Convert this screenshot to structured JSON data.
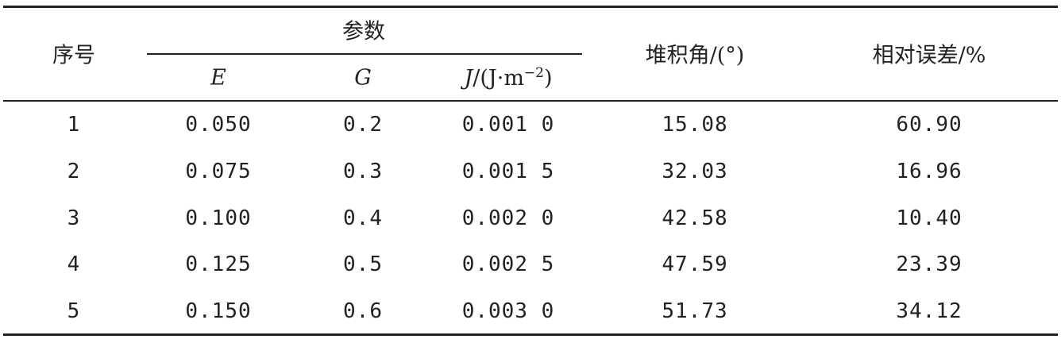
{
  "table": {
    "header": {
      "index": "序号",
      "params": "参数",
      "sub": [
        {
          "symbol": "E"
        },
        {
          "symbol": "G"
        },
        {
          "symbol": "J",
          "unit": "/(J·m",
          "exp": "−2",
          "close": ")"
        }
      ],
      "angle": "堆积角/(°)",
      "error": "相对误差/%"
    },
    "rows": [
      [
        "1",
        "0.050",
        "0.2",
        "0.001 0",
        "15.08",
        "60.90"
      ],
      [
        "2",
        "0.075",
        "0.3",
        "0.001 5",
        "32.03",
        "16.96"
      ],
      [
        "3",
        "0.100",
        "0.4",
        "0.002 0",
        "42.58",
        "10.40"
      ],
      [
        "4",
        "0.125",
        "0.5",
        "0.002 5",
        "47.59",
        "23.39"
      ],
      [
        "5",
        "0.150",
        "0.6",
        "0.003 0",
        "51.73",
        "34.12"
      ]
    ]
  }
}
